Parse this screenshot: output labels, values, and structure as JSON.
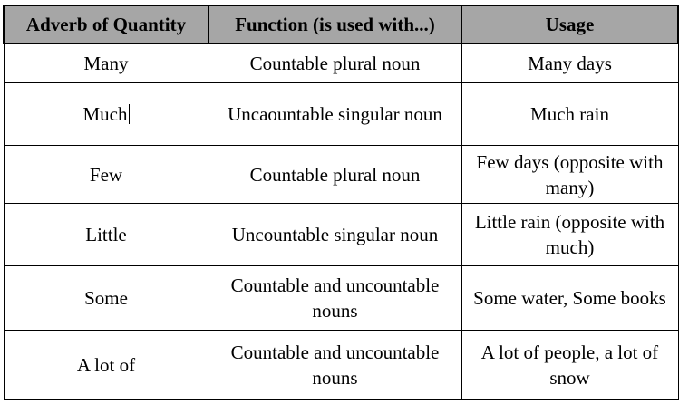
{
  "table": {
    "headers": [
      "Adverb of Quantity",
      "Function (is used with...)",
      "Usage"
    ],
    "rows": [
      {
        "adverb": "Many",
        "function": "Countable plural noun",
        "usage": "Many days"
      },
      {
        "adverb": "Much",
        "function": "Uncaountable singular noun",
        "usage": "Much rain"
      },
      {
        "adverb": "Few",
        "function": "Countable plural noun",
        "usage": "Few days (opposite with many)"
      },
      {
        "adverb": "Little",
        "function": "Uncountable singular noun",
        "usage": "Little rain (opposite with much)"
      },
      {
        "adverb": "Some",
        "function": "Countable and uncountable nouns",
        "usage": "Some water, Some books"
      },
      {
        "adverb": "A lot of",
        "function": "Countable and uncountable nouns",
        "usage": "A lot of people, a lot of snow"
      }
    ]
  },
  "colors": {
    "header_background": "#a6a6a6",
    "border": "#000000",
    "text": "#000000"
  }
}
